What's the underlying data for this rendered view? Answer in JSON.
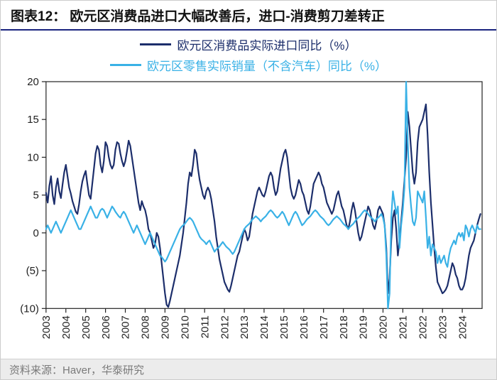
{
  "title_prefix": "图表12：",
  "title": " 欧元区消费品进口大幅改善后，进口-消费剪刀差转正",
  "footer": "资料来源：Haver，华泰研究",
  "legend": {
    "series1": {
      "label": "欧元区消费品实际进口同比（%）",
      "color": "#1c2e6b"
    },
    "series2": {
      "label": "欧元区零售实际销量（不含汽车）同比（%）",
      "color": "#39b1e6"
    }
  },
  "chart": {
    "type": "line",
    "background_color": "#ffffff",
    "grid_color": "none",
    "axis_color": "#222222",
    "tick_color": "#222222",
    "line_width": 2.2,
    "ylim": [
      -10,
      20
    ],
    "yticks": [
      -10,
      -5,
      0,
      5,
      10,
      15,
      20
    ],
    "ytick_labels": [
      "(10)",
      "(5)",
      "0",
      "5",
      "10",
      "15",
      "20"
    ],
    "x_years": [
      2003,
      2004,
      2005,
      2006,
      2007,
      2008,
      2009,
      2010,
      2011,
      2012,
      2013,
      2014,
      2015,
      2016,
      2017,
      2018,
      2019,
      2020,
      2021,
      2022,
      2023,
      2024
    ],
    "series": [
      {
        "name": "imports",
        "color": "#1c2e6b",
        "monthly_step_years": 22.0,
        "data": [
          5.3,
          4.0,
          6.2,
          7.5,
          5.0,
          3.8,
          6.0,
          7.2,
          5.5,
          4.6,
          6.4,
          8.0,
          9.0,
          7.5,
          6.0,
          5.2,
          4.2,
          3.5,
          2.8,
          2.5,
          3.8,
          5.5,
          6.8,
          7.6,
          8.2,
          6.5,
          5.0,
          4.5,
          6.5,
          8.5,
          10.5,
          11.5,
          11.0,
          9.0,
          8.0,
          9.5,
          12.0,
          11.5,
          10.0,
          9.0,
          8.5,
          9.0,
          11.0,
          12.0,
          11.8,
          10.5,
          9.5,
          8.8,
          9.5,
          10.8,
          12.2,
          11.5,
          10.0,
          8.5,
          7.0,
          5.5,
          4.0,
          3.0,
          4.2,
          3.5,
          3.0,
          2.0,
          0.5,
          0.0,
          -1.0,
          -2.0,
          -1.5,
          0.0,
          -0.5,
          -2.0,
          -4.0,
          -6.0,
          -8.0,
          -9.5,
          -9.8,
          -9.0,
          -8.0,
          -7.0,
          -6.0,
          -5.0,
          -4.0,
          -3.0,
          -1.5,
          0.0,
          2.0,
          4.0,
          6.5,
          8.0,
          7.5,
          9.0,
          11.0,
          10.5,
          8.5,
          7.0,
          6.0,
          5.0,
          4.5,
          5.5,
          6.0,
          5.5,
          4.5,
          3.0,
          1.5,
          -0.5,
          -2.0,
          -3.5,
          -4.5,
          -5.5,
          -6.5,
          -7.0,
          -7.5,
          -7.8,
          -7.0,
          -6.0,
          -5.0,
          -4.0,
          -3.0,
          -2.5,
          -1.5,
          -0.5,
          0.5,
          0.0,
          -1.0,
          -0.5,
          1.0,
          2.5,
          3.5,
          4.5,
          5.5,
          6.0,
          5.5,
          5.0,
          4.8,
          5.5,
          6.5,
          7.5,
          8.0,
          7.5,
          6.0,
          5.0,
          5.5,
          7.0,
          8.5,
          9.5,
          10.5,
          11.0,
          10.0,
          8.0,
          6.0,
          5.0,
          4.5,
          5.0,
          6.0,
          7.0,
          6.5,
          5.5,
          5.0,
          4.0,
          3.0,
          2.5,
          3.5,
          5.0,
          6.5,
          7.0,
          7.5,
          8.0,
          7.5,
          6.5,
          6.0,
          5.0,
          4.0,
          3.5,
          3.0,
          2.5,
          3.0,
          4.0,
          5.0,
          5.5,
          4.5,
          3.5,
          3.0,
          2.0,
          1.0,
          0.5,
          1.5,
          3.0,
          4.0,
          3.0,
          1.5,
          0.0,
          -1.0,
          -0.5,
          0.5,
          1.5,
          2.5,
          3.5,
          3.0,
          2.0,
          1.0,
          0.5,
          1.5,
          3.0,
          3.5,
          3.0,
          2.5,
          1.0,
          -2.0,
          -8.0,
          -6.0,
          -1.0,
          2.0,
          3.0,
          0.5,
          -3.0,
          -1.0,
          1.5,
          4.0,
          7.0,
          10.0,
          16.0,
          14.0,
          11.0,
          8.0,
          6.5,
          8.0,
          12.0,
          14.0,
          14.5,
          15.0,
          16.0,
          17.0,
          13.0,
          8.0,
          4.0,
          1.0,
          -2.0,
          -4.5,
          -6.5,
          -7.0,
          -7.5,
          -8.0,
          -7.8,
          -7.5,
          -7.0,
          -6.0,
          -5.0,
          -4.0,
          -4.5,
          -5.5,
          -6.0,
          -7.0,
          -7.5,
          -7.5,
          -7.0,
          -6.0,
          -4.5,
          -3.0,
          -2.0,
          -1.5,
          -1.0,
          0.0,
          1.0,
          1.8,
          2.5
        ]
      },
      {
        "name": "retail",
        "color": "#39b1e6",
        "monthly_step_years": 22.0,
        "data": [
          0.5,
          1.0,
          0.5,
          0.0,
          0.5,
          1.0,
          1.5,
          1.0,
          0.5,
          0.0,
          0.5,
          1.0,
          1.5,
          2.0,
          2.5,
          3.0,
          2.5,
          2.0,
          1.5,
          1.0,
          0.5,
          0.5,
          1.0,
          1.5,
          2.0,
          2.5,
          3.0,
          3.5,
          3.0,
          2.5,
          2.0,
          2.0,
          2.5,
          3.0,
          3.2,
          3.0,
          2.5,
          2.0,
          2.5,
          3.0,
          3.5,
          3.2,
          2.8,
          2.5,
          2.2,
          2.0,
          2.5,
          2.8,
          2.5,
          2.0,
          1.5,
          1.0,
          0.5,
          0.0,
          0.5,
          1.0,
          0.5,
          0.0,
          -0.5,
          -1.0,
          -1.5,
          -1.0,
          -0.5,
          0.0,
          -0.5,
          -1.0,
          -1.5,
          -2.0,
          -2.5,
          -3.0,
          -3.2,
          -3.5,
          -3.8,
          -3.5,
          -3.0,
          -2.5,
          -2.0,
          -1.5,
          -1.0,
          -0.5,
          0.0,
          0.5,
          0.8,
          1.0,
          1.2,
          1.5,
          1.8,
          2.0,
          1.8,
          1.5,
          1.0,
          0.5,
          0.0,
          -0.5,
          -0.8,
          -1.0,
          -1.2,
          -1.5,
          -1.2,
          -1.0,
          -1.5,
          -2.0,
          -2.5,
          -2.2,
          -2.0,
          -1.8,
          -1.5,
          -1.2,
          -1.5,
          -1.8,
          -2.0,
          -2.2,
          -2.5,
          -2.8,
          -2.5,
          -2.0,
          -1.5,
          -1.0,
          -0.5,
          0.0,
          0.5,
          0.8,
          1.0,
          1.2,
          1.5,
          1.8,
          2.0,
          2.2,
          2.0,
          1.8,
          1.5,
          1.8,
          2.0,
          2.2,
          2.5,
          2.8,
          3.0,
          2.8,
          2.5,
          2.2,
          2.0,
          2.2,
          2.5,
          2.8,
          2.5,
          2.0,
          1.5,
          1.0,
          1.5,
          2.0,
          2.5,
          2.8,
          2.5,
          2.0,
          1.5,
          1.0,
          1.2,
          1.5,
          1.8,
          2.0,
          2.2,
          2.5,
          2.8,
          3.0,
          2.8,
          2.5,
          2.2,
          2.0,
          1.8,
          1.5,
          1.2,
          1.0,
          1.2,
          1.5,
          1.8,
          2.0,
          2.2,
          2.0,
          1.8,
          1.5,
          1.2,
          1.0,
          0.8,
          0.5,
          0.8,
          1.0,
          1.2,
          1.5,
          1.8,
          2.0,
          2.2,
          2.5,
          2.8,
          3.0,
          2.8,
          2.5,
          2.2,
          2.0,
          1.8,
          1.5,
          1.8,
          2.0,
          2.2,
          2.5,
          2.0,
          1.0,
          -3.0,
          -14.0,
          -8.0,
          2.0,
          5.5,
          4.0,
          2.5,
          3.5,
          -2.0,
          1.0,
          3.0,
          6.0,
          20.0,
          12.0,
          6.0,
          3.5,
          1.5,
          1.0,
          2.0,
          5.5,
          5.0,
          4.5,
          4.0,
          5.5,
          2.0,
          -2.0,
          -0.5,
          -3.0,
          -1.5,
          -2.0,
          -2.5,
          -4.0,
          -3.0,
          -4.0,
          -3.5,
          -3.0,
          -4.0,
          -4.5,
          -3.0,
          -2.0,
          -1.5,
          -1.0,
          -1.5,
          -0.5,
          0.0,
          -0.5,
          0.0,
          -1.0,
          1.0,
          0.5,
          -0.5,
          0.5,
          1.0,
          0.5,
          0.0,
          1.0,
          0.5,
          0.5
        ]
      }
    ]
  }
}
